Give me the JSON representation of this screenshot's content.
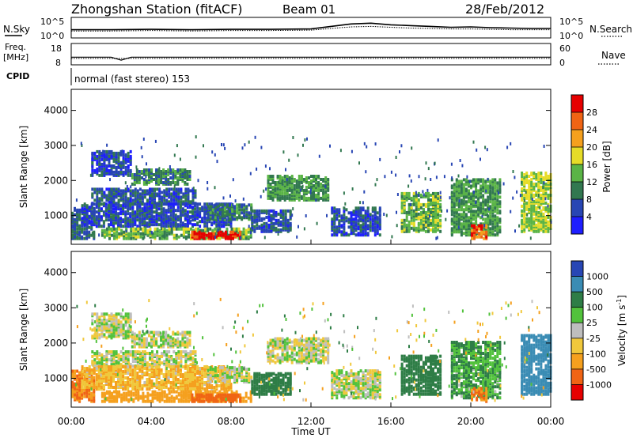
{
  "header": {
    "station": "Zhongshan Station (fitACF)",
    "beam": "Beam 01",
    "date": "28/Feb/2012"
  },
  "noise_panel": {
    "left_label": "N.Sky",
    "right_label": "N.Search",
    "left_ticks": [
      "10^5",
      "10^0"
    ],
    "right_ticks": [
      "10^5",
      "10^0"
    ],
    "chart_data": {
      "type": "line",
      "series": [
        {
          "name": "N.Sky",
          "x_hours": [
            0,
            2,
            4,
            6,
            8,
            10,
            12,
            13,
            14,
            15,
            16,
            17,
            18,
            19,
            20,
            21,
            22,
            23,
            24
          ],
          "values": [
            2.0,
            2.0,
            2.1,
            2.0,
            2.1,
            2.1,
            2.2,
            2.8,
            3.4,
            3.6,
            3.2,
            3.0,
            2.8,
            2.6,
            2.7,
            2.5,
            2.4,
            2.3,
            2.3
          ]
        },
        {
          "name": "N.Search",
          "x_hours": [
            0,
            2,
            4,
            6,
            8,
            10,
            12,
            13,
            14,
            15,
            16,
            17,
            18,
            19,
            20,
            21,
            22,
            23,
            24
          ],
          "values": [
            1.7,
            1.7,
            1.8,
            1.7,
            1.8,
            1.8,
            1.9,
            2.3,
            2.7,
            2.8,
            2.6,
            2.4,
            2.3,
            2.2,
            2.2,
            2.1,
            2.0,
            2.0,
            2.0
          ]
        }
      ]
    }
  },
  "freq_panel": {
    "left_label_1": "Freq.",
    "left_label_2": "[MHz]",
    "right_label": "Nave",
    "left_ticks": [
      "18",
      "8"
    ],
    "right_ticks": [
      "60",
      "0"
    ],
    "chart_data": {
      "type": "line",
      "series": [
        {
          "name": "Freq.",
          "x_hours": [
            0,
            1,
            2,
            2.5,
            3,
            4,
            6,
            8,
            10,
            12,
            14,
            16,
            18,
            20,
            22,
            24
          ],
          "values": [
            11.6,
            11.6,
            11.6,
            10.2,
            11.6,
            11.6,
            11.6,
            11.6,
            11.6,
            11.6,
            11.6,
            11.6,
            11.6,
            11.6,
            11.6,
            11.6
          ]
        },
        {
          "name": "Nave",
          "x_hours": [
            0,
            4,
            8,
            12,
            16,
            20,
            24
          ],
          "values": [
            18,
            18,
            18,
            18,
            18,
            18,
            18
          ]
        }
      ]
    }
  },
  "cpid_panel": {
    "label": "CPID",
    "text": "normal (fast stereo) 153"
  },
  "power_panel": {
    "ylabel": "Slant Range [km]",
    "yticks": [
      "1000",
      "2000",
      "3000",
      "4000"
    ],
    "colorbar_label": "Power [dB]",
    "colorbar_ticks": [
      "4",
      "8",
      "12",
      "16",
      "20",
      "24",
      "28"
    ],
    "colors": [
      "#1e1eff",
      "#2846b4",
      "#327850",
      "#5ab446",
      "#e6dc28",
      "#f5a01e",
      "#f06414",
      "#e60000"
    ]
  },
  "velocity_panel": {
    "ylabel": "Slant Range [km]",
    "yticks": [
      "1000",
      "2000",
      "3000",
      "4000"
    ],
    "colorbar_label": "Velocity [m s",
    "colorbar_sup": "-1",
    "colorbar_ticks": [
      "1000",
      "500",
      "100",
      "25",
      "-25",
      "-100",
      "-500",
      "-1000"
    ],
    "colors": [
      "#2846b4",
      "#3a8cb4",
      "#2e7d46",
      "#52c23c",
      "#bebebe",
      "#f0c83c",
      "#f5a01e",
      "#f06414",
      "#e60000"
    ]
  },
  "time_axis": {
    "ticks": [
      "00:00",
      "04:00",
      "08:00",
      "12:00",
      "16:00",
      "20:00",
      "00:00"
    ],
    "xlabel": "Time UT"
  },
  "chart_data": {
    "type": "heatmap",
    "x": "Time UT (00:00 - 24:00)",
    "y": "Slant Range [km]",
    "ylim": [
      180,
      4600
    ],
    "power_db_range": [
      0,
      30
    ],
    "velocity_range": [
      -1000,
      1000
    ],
    "echo_regions": [
      {
        "t_start": 0.0,
        "t_end": 1.2,
        "r_start": 300,
        "r_end": 1200,
        "power_db": 8,
        "velocity": -500
      },
      {
        "t_start": 1.0,
        "t_end": 3.0,
        "r_start": 2100,
        "r_end": 2800,
        "power_db": 6,
        "velocity": 0
      },
      {
        "t_start": 1.0,
        "t_end": 6.2,
        "r_start": 1300,
        "r_end": 1750,
        "power_db": 7,
        "velocity": 0
      },
      {
        "t_start": 3.0,
        "t_end": 6.0,
        "r_start": 1850,
        "r_end": 2300,
        "power_db": 10,
        "velocity": 0
      },
      {
        "t_start": 0.5,
        "t_end": 8.0,
        "r_start": 650,
        "r_end": 1300,
        "power_db": 6,
        "velocity": -100
      },
      {
        "t_start": 1.5,
        "t_end": 9.0,
        "r_start": 300,
        "r_end": 600,
        "power_db": 14,
        "velocity": -400
      },
      {
        "t_start": 6.0,
        "t_end": 8.5,
        "r_start": 300,
        "r_end": 500,
        "power_db": 30,
        "velocity": -600
      },
      {
        "t_start": 6.8,
        "t_end": 9.0,
        "r_start": 850,
        "r_end": 1300,
        "power_db": 10,
        "velocity": 0
      },
      {
        "t_start": 9.8,
        "t_end": 12.8,
        "r_start": 1400,
        "r_end": 2100,
        "power_db": 12,
        "velocity": 0
      },
      {
        "t_start": 9.0,
        "t_end": 11.0,
        "r_start": 500,
        "r_end": 1100,
        "power_db": 7,
        "velocity": 200
      },
      {
        "t_start": 13.0,
        "t_end": 15.5,
        "r_start": 400,
        "r_end": 1200,
        "power_db": 6,
        "velocity": 0
      },
      {
        "t_start": 16.5,
        "t_end": 18.5,
        "r_start": 500,
        "r_end": 1600,
        "power_db": 14,
        "velocity": 200
      },
      {
        "t_start": 19.0,
        "t_end": 21.5,
        "r_start": 400,
        "r_end": 2000,
        "power_db": 12,
        "velocity": 100
      },
      {
        "t_start": 20.0,
        "t_end": 20.8,
        "r_start": 300,
        "r_end": 700,
        "power_db": 26,
        "velocity": -500
      },
      {
        "t_start": 22.5,
        "t_end": 24.0,
        "r_start": 500,
        "r_end": 2200,
        "power_db": 16,
        "velocity": 800
      }
    ]
  }
}
